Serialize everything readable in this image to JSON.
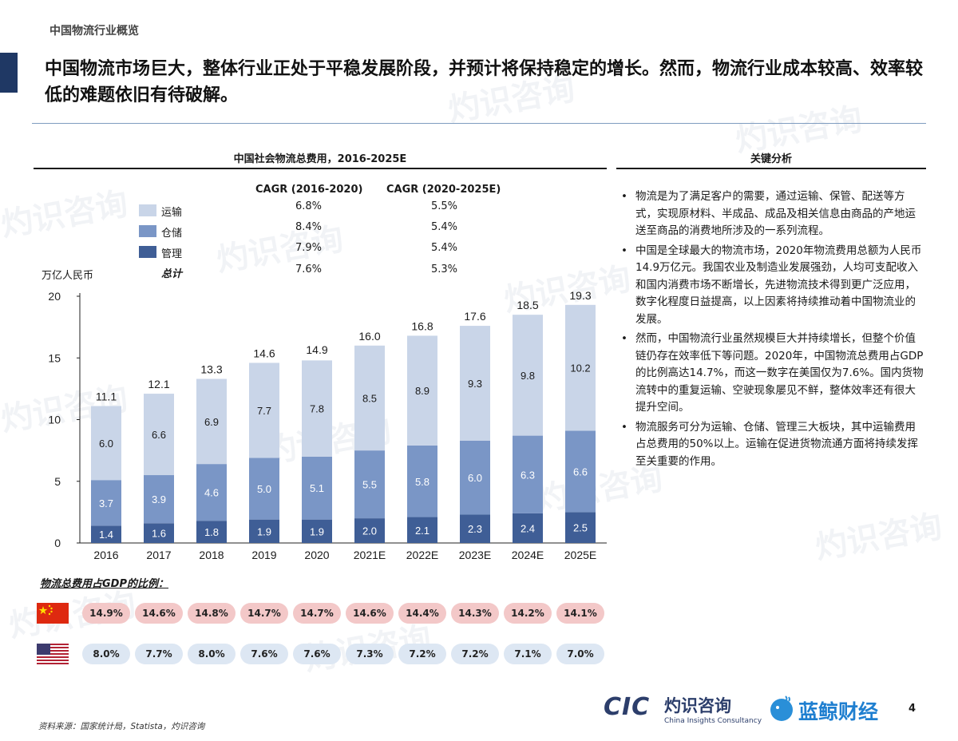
{
  "page": {
    "section_label": "中国物流行业概览",
    "headline": "中国物流市场巨大，整体行业正处于平稳发展阶段，并预计将保持稳定的增长。然而，物流行业成本较高、效率较低的难题依旧有待破解。",
    "page_number": "4",
    "source": "资料来源：国家统计局，Statista，灼识咨询"
  },
  "chart_data": {
    "type": "bar",
    "stacked": true,
    "title": "中国社会物流总费用，2016-2025E",
    "ylabel": "万亿人民币",
    "ylim": [
      0,
      20
    ],
    "yticks": [
      0,
      5,
      10,
      15,
      20
    ],
    "categories": [
      "2016",
      "2017",
      "2018",
      "2019",
      "2020",
      "2021E",
      "2022E",
      "2023E",
      "2024E",
      "2025E"
    ],
    "series": [
      {
        "name": "管理",
        "color": "#3f5e96",
        "values": [
          1.4,
          1.6,
          1.8,
          1.9,
          1.9,
          2.0,
          2.1,
          2.3,
          2.4,
          2.5
        ]
      },
      {
        "name": "仓储",
        "color": "#7a96c6",
        "values": [
          3.7,
          3.9,
          4.6,
          5.0,
          5.1,
          5.5,
          5.8,
          6.0,
          6.3,
          6.6
        ]
      },
      {
        "name": "运输",
        "color": "#c9d5e8",
        "values": [
          6.0,
          6.6,
          6.9,
          7.7,
          7.8,
          8.5,
          8.9,
          9.3,
          9.8,
          10.2
        ]
      }
    ],
    "totals": [
      11.1,
      12.1,
      13.3,
      14.6,
      14.9,
      16.0,
      16.8,
      17.6,
      18.5,
      19.3
    ],
    "legend": [
      "运输",
      "仓储",
      "管理",
      "总计"
    ],
    "cagr": {
      "headers": [
        "CAGR (2016-2020)",
        "CAGR (2020-2025E)"
      ],
      "rows": [
        {
          "name": "运输",
          "a": "6.8%",
          "b": "5.5%"
        },
        {
          "name": "仓储",
          "a": "8.4%",
          "b": "5.4%"
        },
        {
          "name": "管理",
          "a": "7.9%",
          "b": "5.4%"
        },
        {
          "name": "总计",
          "a": "7.6%",
          "b": "5.3%"
        }
      ]
    }
  },
  "gdp": {
    "title": "物流总费用占GDP的比例：",
    "china": [
      "14.9%",
      "14.6%",
      "14.8%",
      "14.7%",
      "14.7%",
      "14.6%",
      "14.4%",
      "14.3%",
      "14.2%",
      "14.1%"
    ],
    "usa": [
      "8.0%",
      "7.7%",
      "8.0%",
      "7.6%",
      "7.6%",
      "7.3%",
      "7.2%",
      "7.2%",
      "7.1%",
      "7.0%"
    ]
  },
  "key_analysis": {
    "title": "关键分析",
    "bullets": [
      "物流是为了满足客户的需要，通过运输、保管、配送等方式，实现原材料、半成品、成品及相关信息由商品的产地运送至商品的消费地所涉及的一系列流程。",
      "中国是全球最大的物流市场，2020年物流费用总额为人民币14.9万亿元。我国农业及制造业发展强劲，人均可支配收入和国内消费市场不断增长，先进物流技术得到更广泛应用，数字化程度日益提高，以上因素将持续推动着中国物流业的发展。",
      "然而，中国物流行业虽然规模巨大并持续增长，但整个价值链仍存在效率低下等问题。2020年，中国物流总费用占GDP的比例高达14.7%，而这一数字在美国仅为7.6%。国内货物流转中的重复运输、空驶现象屡见不鲜，整体效率还有很大提升空间。",
      "物流服务可分为运输、仓储、管理三大板块，其中运输费用占总费用的50%以上。运输在促进货物流通方面将持续发挥至关重要的作用。"
    ]
  },
  "logos": {
    "cic_mark": "CIC",
    "cic_cn": "灼识咨询",
    "cic_en": "China Insights Consultancy",
    "lanjing": "蓝鲸财经"
  },
  "watermark": {
    "cn": "灼识咨询",
    "en": "China Insights Consultancy"
  }
}
